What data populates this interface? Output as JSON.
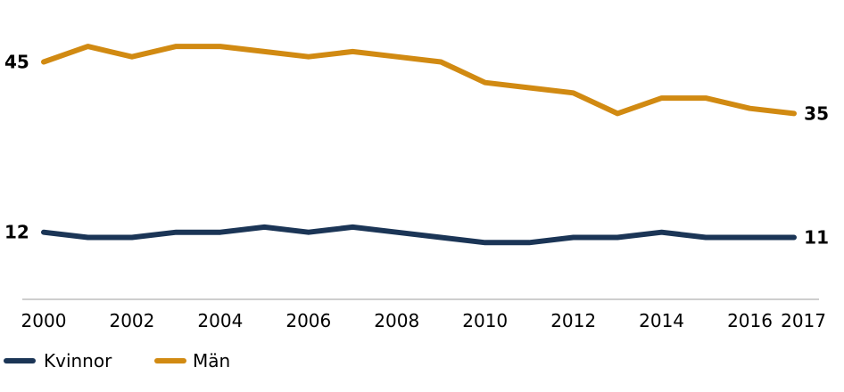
{
  "chart_data": {
    "type": "line",
    "x": [
      2000,
      2001,
      2002,
      2003,
      2004,
      2005,
      2006,
      2007,
      2008,
      2009,
      2010,
      2011,
      2012,
      2013,
      2014,
      2015,
      2016,
      2017
    ],
    "x_tick_labels": [
      "2000",
      "2002",
      "2004",
      "2006",
      "2008",
      "2010",
      "2012",
      "2014",
      "2016",
      "2017"
    ],
    "series": [
      {
        "name": "Män",
        "color": "#d18a12",
        "values": [
          45,
          48,
          46,
          48,
          48,
          47,
          46,
          47,
          46,
          45,
          41,
          40,
          39,
          35,
          38,
          38,
          36,
          35
        ],
        "start_label": "45",
        "end_label": "35"
      },
      {
        "name": "Kvinnor",
        "color": "#1b3556",
        "values": [
          12,
          11,
          11,
          12,
          12,
          13,
          12,
          13,
          12,
          11,
          10,
          10,
          11,
          11,
          12,
          11,
          11,
          11
        ],
        "start_label": "12",
        "end_label": "11"
      }
    ],
    "legend": [
      {
        "name": "Kvinnor",
        "color": "#1b3556"
      },
      {
        "name": "Män",
        "color": "#d18a12"
      }
    ],
    "ylim": [
      -1,
      57
    ],
    "title": "",
    "xlabel": "",
    "ylabel": ""
  }
}
